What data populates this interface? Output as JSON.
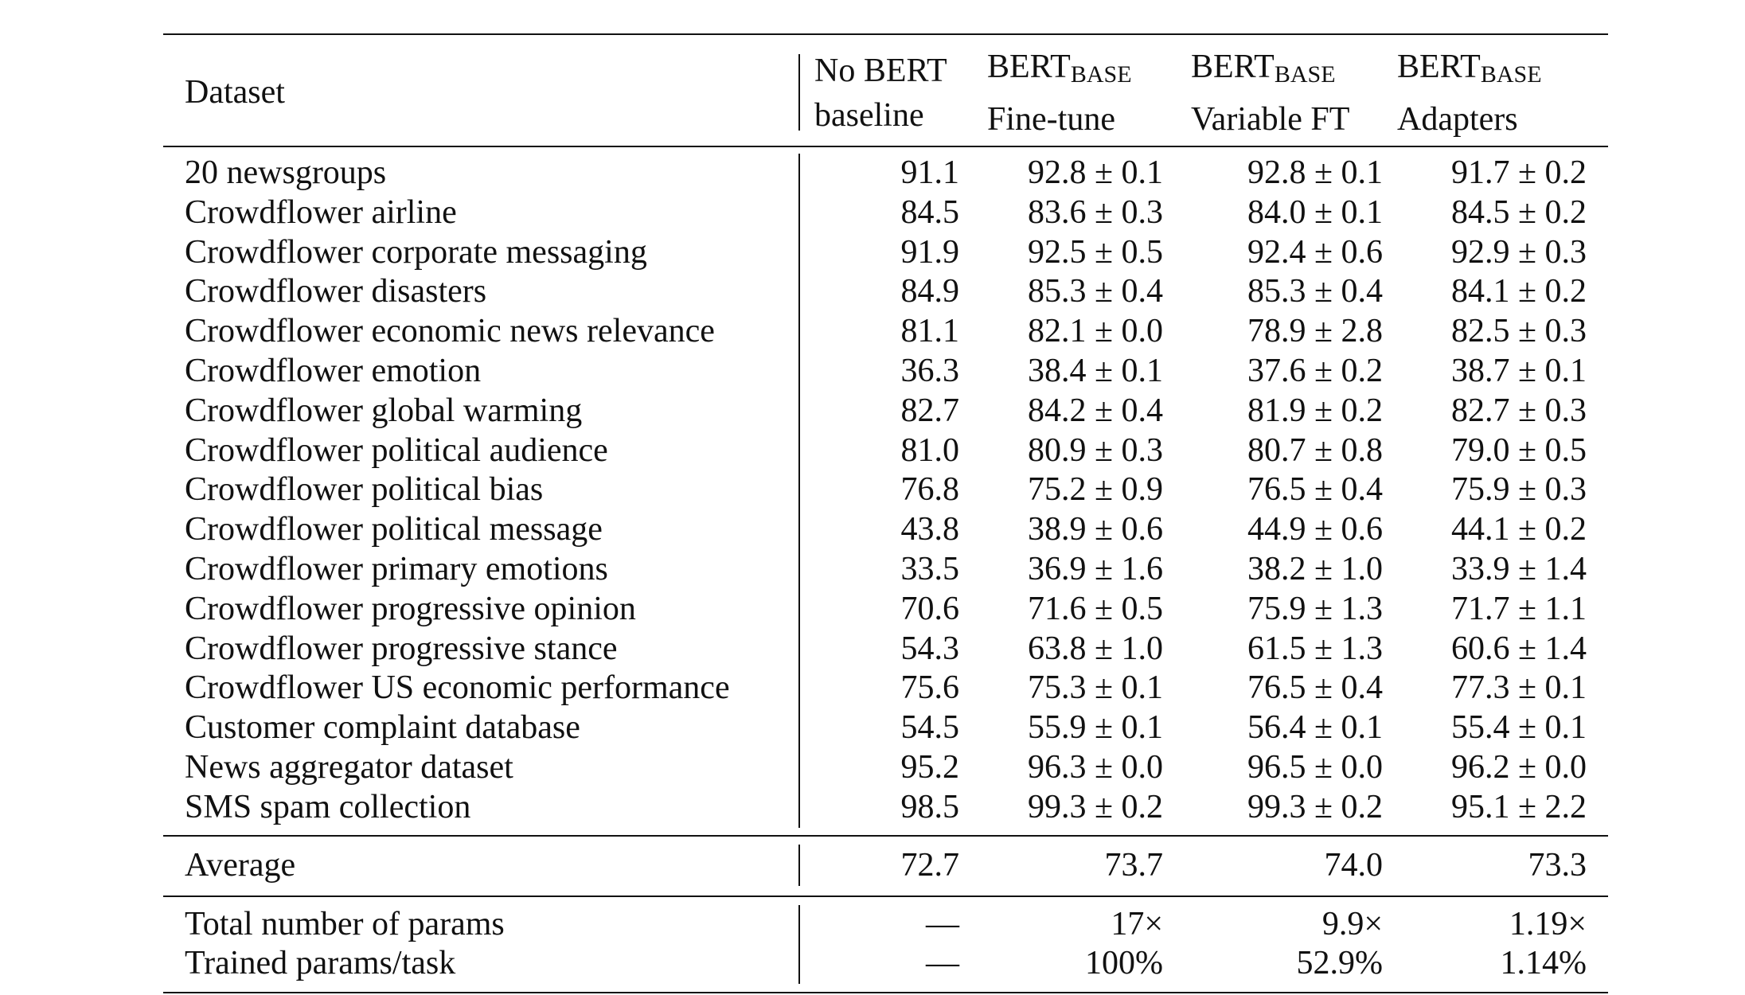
{
  "header": {
    "dataset": "Dataset",
    "columns": [
      {
        "line1": "No BERT",
        "base": "",
        "line2": "baseline"
      },
      {
        "line1": "BERT",
        "base": "BASE",
        "line2": "Fine-tune"
      },
      {
        "line1": "BERT",
        "base": "BASE",
        "line2": "Variable FT"
      },
      {
        "line1": "BERT",
        "base": "BASE",
        "line2": "Adapters"
      }
    ]
  },
  "rows": [
    {
      "name": "20 newsgroups",
      "baseline": "91.1",
      "finetune": "92.8 ± 0.1",
      "variable": "92.8 ± 0.1",
      "adapters": "91.7 ± 0.2"
    },
    {
      "name": "Crowdflower airline",
      "baseline": "84.5",
      "finetune": "83.6 ± 0.3",
      "variable": "84.0 ± 0.1",
      "adapters": "84.5 ± 0.2"
    },
    {
      "name": "Crowdflower corporate messaging",
      "baseline": "91.9",
      "finetune": "92.5 ± 0.5",
      "variable": "92.4 ± 0.6",
      "adapters": "92.9 ± 0.3"
    },
    {
      "name": "Crowdflower disasters",
      "baseline": "84.9",
      "finetune": "85.3 ± 0.4",
      "variable": "85.3 ± 0.4",
      "adapters": "84.1 ± 0.2"
    },
    {
      "name": "Crowdflower economic news relevance",
      "baseline": "81.1",
      "finetune": "82.1 ± 0.0",
      "variable": "78.9 ± 2.8",
      "adapters": "82.5 ± 0.3"
    },
    {
      "name": "Crowdflower emotion",
      "baseline": "36.3",
      "finetune": "38.4 ± 0.1",
      "variable": "37.6 ± 0.2",
      "adapters": "38.7 ± 0.1"
    },
    {
      "name": "Crowdflower global warming",
      "baseline": "82.7",
      "finetune": "84.2 ± 0.4",
      "variable": "81.9 ± 0.2",
      "adapters": "82.7 ± 0.3"
    },
    {
      "name": "Crowdflower political audience",
      "baseline": "81.0",
      "finetune": "80.9 ± 0.3",
      "variable": "80.7 ± 0.8",
      "adapters": "79.0 ± 0.5"
    },
    {
      "name": "Crowdflower political bias",
      "baseline": "76.8",
      "finetune": "75.2 ± 0.9",
      "variable": "76.5 ± 0.4",
      "adapters": "75.9 ± 0.3"
    },
    {
      "name": "Crowdflower political message",
      "baseline": "43.8",
      "finetune": "38.9 ± 0.6",
      "variable": "44.9 ± 0.6",
      "adapters": "44.1 ± 0.2"
    },
    {
      "name": "Crowdflower primary emotions",
      "baseline": "33.5",
      "finetune": "36.9 ± 1.6",
      "variable": "38.2 ± 1.0",
      "adapters": "33.9 ± 1.4"
    },
    {
      "name": "Crowdflower progressive opinion",
      "baseline": "70.6",
      "finetune": "71.6 ± 0.5",
      "variable": "75.9 ± 1.3",
      "adapters": "71.7 ± 1.1"
    },
    {
      "name": "Crowdflower progressive stance",
      "baseline": "54.3",
      "finetune": "63.8 ± 1.0",
      "variable": "61.5 ± 1.3",
      "adapters": "60.6 ± 1.4"
    },
    {
      "name": "Crowdflower US economic performance",
      "baseline": "75.6",
      "finetune": "75.3 ± 0.1",
      "variable": "76.5 ± 0.4",
      "adapters": "77.3 ± 0.1"
    },
    {
      "name": "Customer complaint database",
      "baseline": "54.5",
      "finetune": "55.9 ± 0.1",
      "variable": "56.4 ± 0.1",
      "adapters": "55.4 ± 0.1"
    },
    {
      "name": "News aggregator dataset",
      "baseline": "95.2",
      "finetune": "96.3 ± 0.0",
      "variable": "96.5 ± 0.0",
      "adapters": "96.2 ± 0.0"
    },
    {
      "name": "SMS spam collection",
      "baseline": "98.5",
      "finetune": "99.3 ± 0.2",
      "variable": "99.3 ± 0.2",
      "adapters": "95.1 ± 2.2"
    }
  ],
  "average": {
    "name": "Average",
    "baseline": "72.7",
    "finetune": "73.7",
    "variable": "74.0",
    "adapters": "73.3"
  },
  "params": [
    {
      "name": "Total number of params",
      "baseline": "—",
      "finetune": "17×",
      "variable": "9.9×",
      "adapters": "1.19×"
    },
    {
      "name": "Trained params/task",
      "baseline": "—",
      "finetune": "100%",
      "variable": "52.9%",
      "adapters": "1.14%"
    }
  ]
}
